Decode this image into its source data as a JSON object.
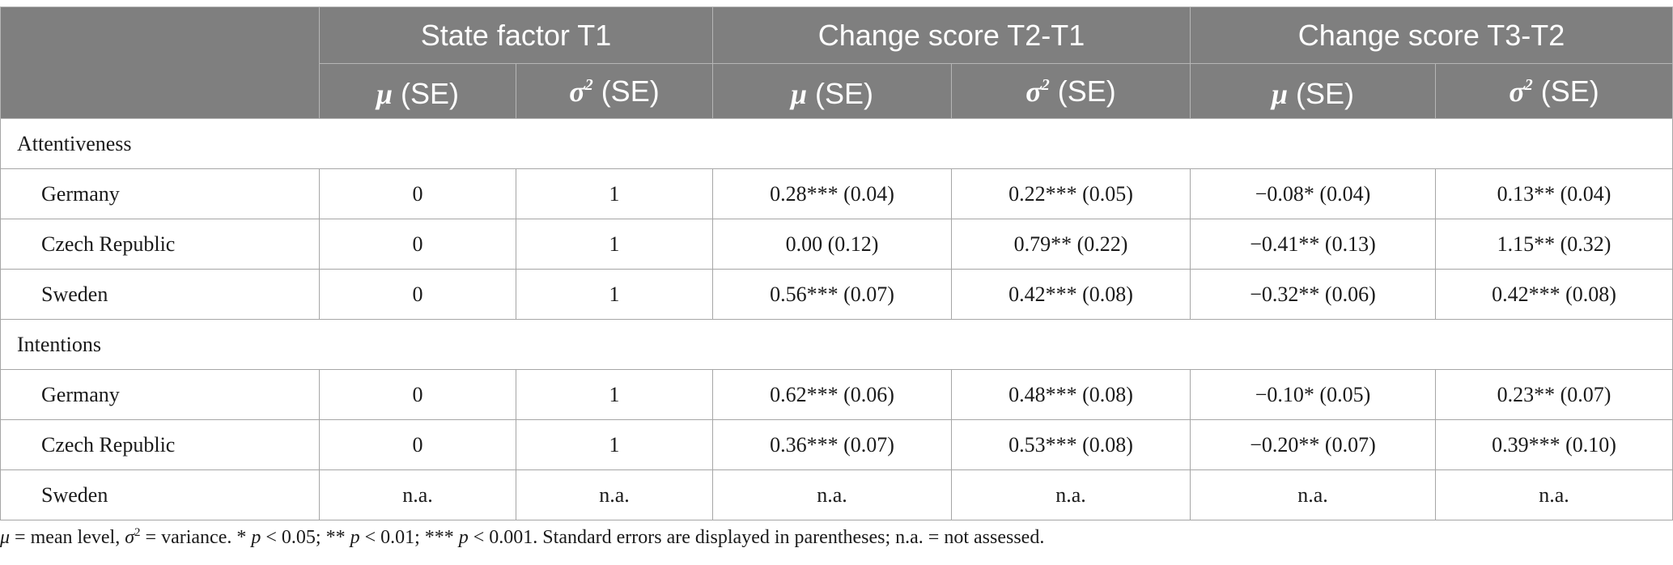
{
  "table": {
    "groups": [
      "State factor T1",
      "Change score T2-T1",
      "Change score T3-T2"
    ],
    "subheaders": [
      {
        "symbol": "μ",
        "sup": "",
        "rest": " (SE)"
      },
      {
        "symbol": "σ",
        "sup": "2",
        "rest": " (SE)"
      },
      {
        "symbol": "μ",
        "sup": "",
        "rest": " (SE)"
      },
      {
        "symbol": "σ",
        "sup": "2",
        "rest": " (SE)"
      },
      {
        "symbol": "μ",
        "sup": "",
        "rest": " (SE)"
      },
      {
        "symbol": "σ",
        "sup": "2",
        "rest": " (SE)"
      }
    ],
    "sections": [
      {
        "label": "Attentiveness",
        "rows": [
          {
            "country": "Germany",
            "values": [
              "0",
              "1",
              "0.28*** (0.04)",
              "0.22*** (0.05)",
              "−0.08* (0.04)",
              "0.13** (0.04)"
            ]
          },
          {
            "country": "Czech Republic",
            "values": [
              "0",
              "1",
              "0.00 (0.12)",
              "0.79** (0.22)",
              "−0.41** (0.13)",
              "1.15** (0.32)"
            ]
          },
          {
            "country": "Sweden",
            "values": [
              "0",
              "1",
              "0.56*** (0.07)",
              "0.42*** (0.08)",
              "−0.32** (0.06)",
              "0.42*** (0.08)"
            ]
          }
        ]
      },
      {
        "label": "Intentions",
        "rows": [
          {
            "country": "Germany",
            "values": [
              "0",
              "1",
              "0.62*** (0.06)",
              "0.48*** (0.08)",
              "−0.10* (0.05)",
              "0.23** (0.07)"
            ]
          },
          {
            "country": "Czech Republic",
            "values": [
              "0",
              "1",
              "0.36*** (0.07)",
              "0.53*** (0.08)",
              "−0.20** (0.07)",
              "0.39*** (0.10)"
            ]
          },
          {
            "country": "Sweden",
            "values": [
              "n.a.",
              "n.a.",
              "n.a.",
              "n.a.",
              "n.a.",
              "n.a."
            ]
          }
        ]
      }
    ]
  },
  "footnote": {
    "mu": "μ",
    "part1": " = mean level, ",
    "sigma": "σ",
    "sigma_sup": "2",
    "part2": " = variance. * ",
    "p1": "p",
    "part3": " < 0.05; ** ",
    "p2": "p",
    "part4": " < 0.01; *** ",
    "p3": "p",
    "part5": " < 0.001. Standard errors are displayed in parentheses; n.a. = not assessed."
  }
}
